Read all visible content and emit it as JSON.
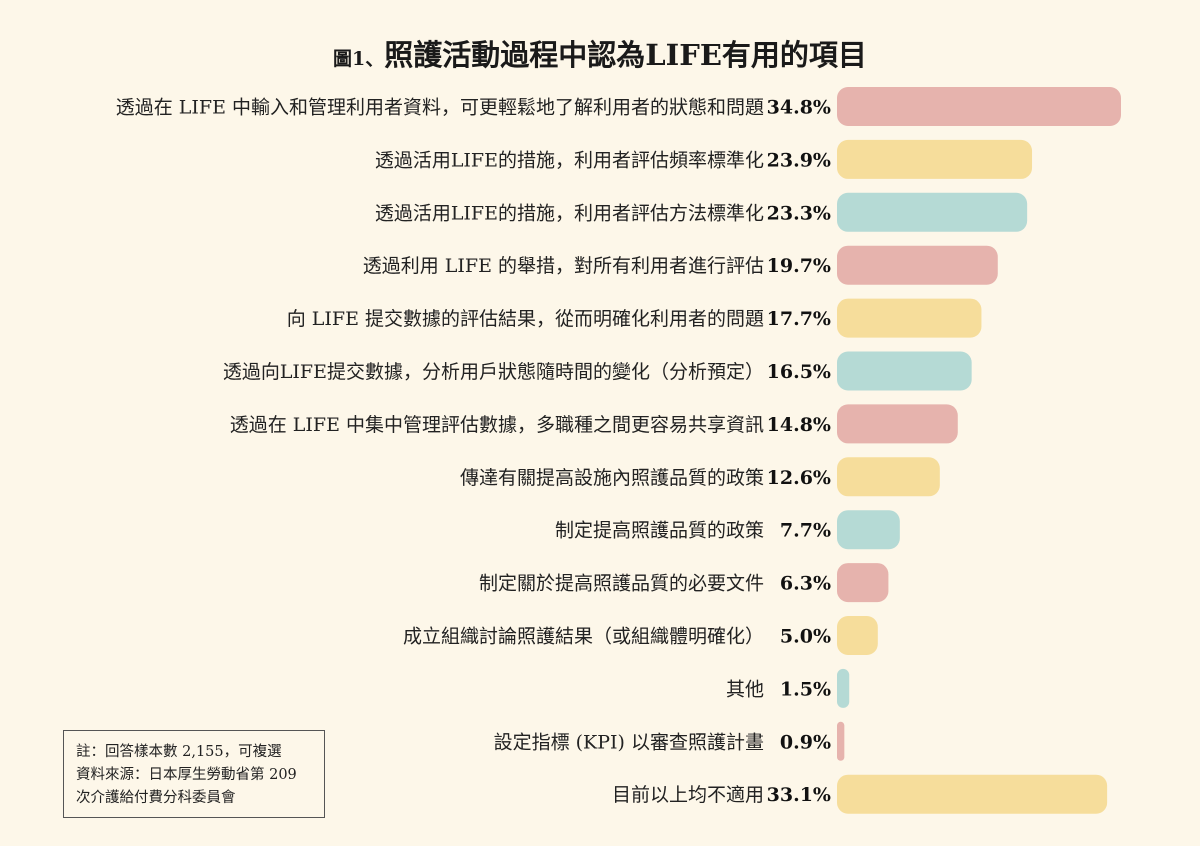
{
  "title": {
    "prefix": "圖1、",
    "text": "照護活動過程中認為LIFE有用的項目"
  },
  "note": {
    "line1": "註：回答樣本數 2,155，可複選",
    "line2": "資料來源：日本厚生勞動省第 209",
    "line3": "次介護給付費分科委員會"
  },
  "colors": {
    "background": "#fdf7e9",
    "pink": "#e6b3ad",
    "yellow": "#f6dd9b",
    "teal": "#b5dad5"
  },
  "chart_data": {
    "type": "bar",
    "orientation": "horizontal",
    "title": "照護活動過程中認為LIFE有用的項目",
    "xlim": [
      0,
      35
    ],
    "grid": false,
    "categories": [
      "透過在 LIFE 中輸入和管理利用者資料，可更輕鬆地了解利用者的狀態和問題",
      "透過活用LIFE的措施，利用者評估頻率標準化",
      "透過活用LIFE的措施，利用者評估方法標準化",
      "透過利用 LIFE 的舉措，對所有利用者進行評估",
      "向 LIFE 提交數據的評估結果，從而明確化利用者的問題",
      "透過向LIFE提交數據，分析用戶狀態隨時間的變化（分析預定）",
      "透過在 LIFE 中集中管理評估數據，多職種之間更容易共享資訊",
      "傳達有關提高設施內照護品質的政策",
      "制定提高照護品質的政策",
      "制定關於提高照護品質的必要文件",
      "成立組織討論照護結果（或組織體明確化）",
      "其他",
      "設定指標 (KPI) 以審查照護計畫",
      "目前以上均不適用"
    ],
    "values": [
      34.8,
      23.9,
      23.3,
      19.7,
      17.7,
      16.5,
      14.8,
      12.6,
      7.7,
      6.3,
      5.0,
      1.5,
      0.9,
      33.1
    ],
    "value_labels": [
      "34.8%",
      "23.9%",
      "23.3%",
      "19.7%",
      "17.7%",
      "16.5%",
      "14.8%",
      "12.6%",
      "7.7%",
      "6.3%",
      "5.0%",
      "1.5%",
      "0.9%",
      "33.1%"
    ],
    "bar_colors": [
      "#e6b3ad",
      "#f6dd9b",
      "#b5dad5",
      "#e6b3ad",
      "#f6dd9b",
      "#b5dad5",
      "#e6b3ad",
      "#f6dd9b",
      "#b5dad5",
      "#e6b3ad",
      "#f6dd9b",
      "#b5dad5",
      "#e6b3ad",
      "#f6dd9b"
    ]
  }
}
